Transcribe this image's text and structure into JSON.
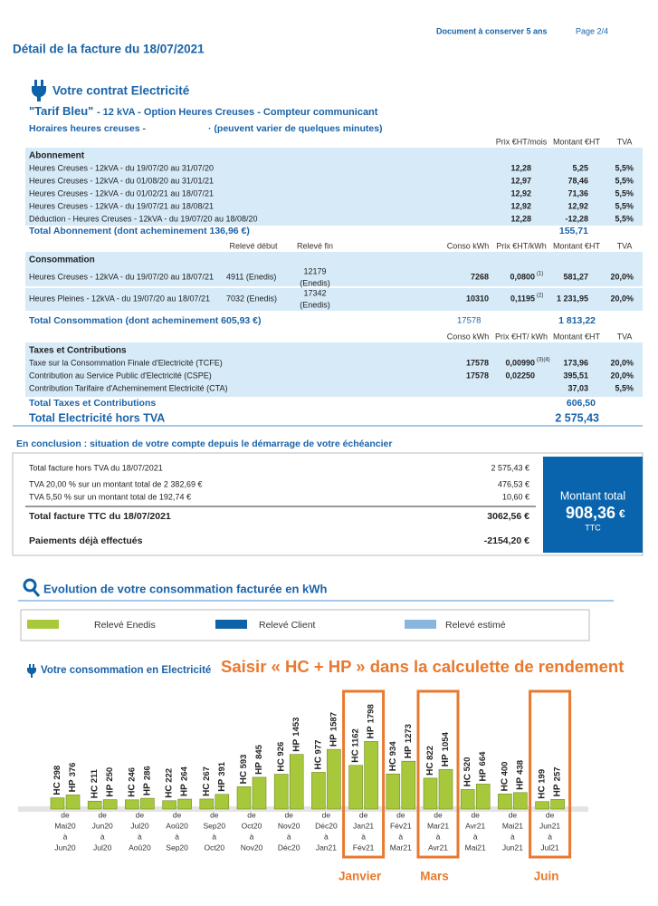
{
  "header": {
    "notice": "Document à conserver 5 ans",
    "page": "Page 2/4",
    "title": "Détail de la facture du 18/07/2021"
  },
  "contract": {
    "heading": "Votre contrat Electricité",
    "tariff": "\"Tarif Bleu\"",
    "tariff_details": "- 12 kVA - Option Heures Creuses - Compteur communicant",
    "off_peak": "Horaires heures creuses -",
    "off_peak_note": "· (peuvent varier de quelques minutes)"
  },
  "subscription": {
    "columns": [
      "Prix €HT/mois",
      "Montant €HT",
      "TVA"
    ],
    "section": "Abonnement",
    "rows": [
      {
        "label": "Heures Creuses - 12kVA - du 19/07/20 au 31/07/20",
        "price": "12,28",
        "amount": "5,25",
        "vat": "5,5%"
      },
      {
        "label": "Heures Creuses - 12kVA - du 01/08/20 au 31/01/21",
        "price": "12,97",
        "amount": "78,46",
        "vat": "5,5%"
      },
      {
        "label": "Heures Creuses - 12kVA - du 01/02/21 au 18/07/21",
        "price": "12,92",
        "amount": "71,36",
        "vat": "5,5%"
      },
      {
        "label": "Heures Creuses - 12kVA - du 19/07/21 au 18/08/21",
        "price": "12,92",
        "amount": "12,92",
        "vat": "5,5%"
      },
      {
        "label": "Déduction - Heures Creuses - 12kVA - du 19/07/20 au 18/08/20",
        "price": "12,28",
        "amount": "-12,28",
        "vat": "5,5%"
      }
    ],
    "total_label": "Total Abonnement (dont acheminement 136,96 €)",
    "total": "155,71"
  },
  "consumption": {
    "columns": [
      "Relevé début",
      "Relevé fin",
      "Conso kWh",
      "Prix €HT/kWh",
      "Montant €HT",
      "TVA"
    ],
    "section": "Consommation",
    "rows": [
      {
        "label": "Heures Creuses - 12kVA - du 19/07/20 au 18/07/21",
        "start": "4911 (Enedis)",
        "end": {
          "reading": "12179",
          "source": "(Enedis)"
        },
        "kwh": "7268",
        "price": "0,0800",
        "note": "(1)",
        "amount": "581,27",
        "vat": "20,0%"
      },
      {
        "label": "Heures Pleines - 12kVA - du 19/07/20 au 18/07/21",
        "start": "7032 (Enedis)",
        "end": {
          "reading": "17342",
          "source": "(Enedis)"
        },
        "kwh": "10310",
        "price": "0,1195",
        "note": "(2)",
        "amount": "1 231,95",
        "vat": "20,0%"
      }
    ],
    "total_label": "Total Consommation (dont acheminement 605,93 €)",
    "total_kwh": "17578",
    "total": "1 813,22"
  },
  "taxes": {
    "columns": [
      "Conso kWh",
      "Prix €HT/ kWh",
      "Montant €HT",
      "TVA"
    ],
    "section": "Taxes et Contributions",
    "rows": [
      {
        "label": "Taxe sur la Consommation Finale d'Electricité (TCFE)",
        "kwh": "17578",
        "price": "0,00990",
        "note": "(3)(4)",
        "amount": "173,96",
        "vat": "20,0%"
      },
      {
        "label": "Contribution au Service Public d'Electricité (CSPE)",
        "kwh": "17578",
        "price": "0,02250",
        "amount": "395,51",
        "vat": "20,0%"
      },
      {
        "label": "Contribution Tarifaire d'Acheminement Electricité (CTA)",
        "amount": "37,03",
        "vat": "5,5%"
      }
    ],
    "total_label": "Total Taxes et Contributions",
    "total": "606,50",
    "grand_total_label": "Total Electricité hors TVA",
    "grand_total": "2 575,43"
  },
  "conclusion": {
    "title": "En conclusion : situation de votre compte depuis le démarrage de votre échéancier",
    "lines": [
      {
        "label": "Total facture hors TVA du 18/07/2021",
        "value": "2 575,43 €"
      },
      {
        "label": "TVA 20,00 % sur un montant total de 2 382,69 €",
        "value": "476,53 €"
      },
      {
        "label": "TVA 5,50 % sur un montant total de 192,74 €",
        "value": "10,60 €"
      }
    ],
    "totals": [
      {
        "label": "Total facture TTC du 18/07/2021",
        "value": "3062,56 €"
      },
      {
        "label": "Paiements déjà effectués",
        "value": "-2154,20 €"
      }
    ],
    "box": {
      "label": "Montant total",
      "amount": "908,36",
      "currency": "€",
      "note": "TTC"
    }
  },
  "evolution": {
    "title": "Evolution de votre consommation facturée en kWh",
    "legend": [
      {
        "name": "Relevé Enedis",
        "color": "#a8c83c"
      },
      {
        "name": "Relevé Client",
        "color": "#0d62a8"
      },
      {
        "name": "Relevé estimé",
        "color": "#8ab6de"
      }
    ]
  },
  "chart": {
    "type": "bar",
    "title": "Votre consommation en Electricité",
    "annotation": "Saisir « HC + HP » dans la calculette de rendement",
    "from_word": "de",
    "to_word": "à",
    "periods": [
      {
        "from": "Mai20",
        "to": "Jun20"
      },
      {
        "from": "Jun20",
        "to": "Jul20"
      },
      {
        "from": "Jul20",
        "to": "Aoû20"
      },
      {
        "from": "Aoû20",
        "to": "Sep20"
      },
      {
        "from": "Sep20",
        "to": "Oct20"
      },
      {
        "from": "Oct20",
        "to": "Nov20"
      },
      {
        "from": "Nov20",
        "to": "Déc20"
      },
      {
        "from": "Déc20",
        "to": "Jan21"
      },
      {
        "from": "Jan21",
        "to": "Fév21",
        "highlight": "Janvier"
      },
      {
        "from": "Fév21",
        "to": "Mar21"
      },
      {
        "from": "Mar21",
        "to": "Avr21",
        "highlight": "Mars"
      },
      {
        "from": "Avr21",
        "to": "Mai21"
      },
      {
        "from": "Mai21",
        "to": "Jun21"
      },
      {
        "from": "Jun21",
        "to": "Jul21",
        "highlight": "Juin"
      }
    ],
    "series": [
      {
        "name": "HC",
        "color": "#a8c83c",
        "values": [
          298,
          211,
          246,
          222,
          267,
          593,
          926,
          977,
          1162,
          934,
          822,
          520,
          400,
          199
        ]
      },
      {
        "name": "HP",
        "color": "#a8c83c",
        "values": [
          376,
          250,
          286,
          264,
          391,
          845,
          1453,
          1587,
          1798,
          1273,
          1054,
          664,
          438,
          257
        ]
      }
    ]
  }
}
